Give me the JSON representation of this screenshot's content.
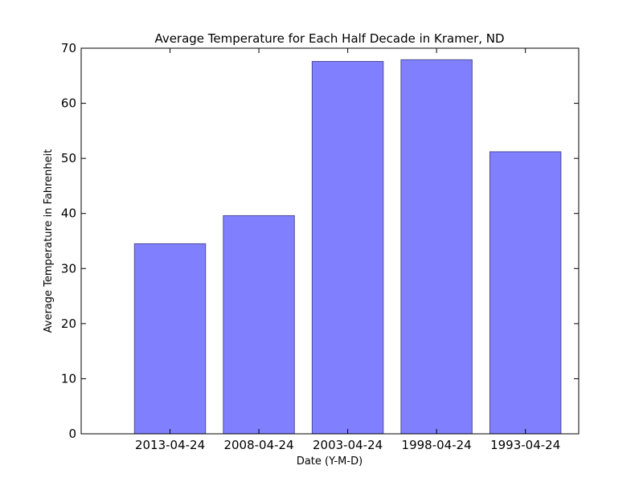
{
  "chart_data": {
    "type": "bar",
    "title": "Average Temperature for Each Half Decade in Kramer, ND",
    "xlabel": "Date (Y-M-D)",
    "ylabel": "Average Temperature in Fahrenheit",
    "categories": [
      "2013-04-24",
      "2008-04-24",
      "2003-04-24",
      "1998-04-24",
      "1993-04-24"
    ],
    "values": [
      34.5,
      39.6,
      67.6,
      67.9,
      51.2
    ],
    "ylim": [
      0,
      70
    ],
    "yticks": [
      0,
      10,
      20,
      30,
      40,
      50,
      60,
      70
    ],
    "grid": false,
    "bar_color": "#8080ff",
    "bar_edge_color": "#4c4c99"
  }
}
